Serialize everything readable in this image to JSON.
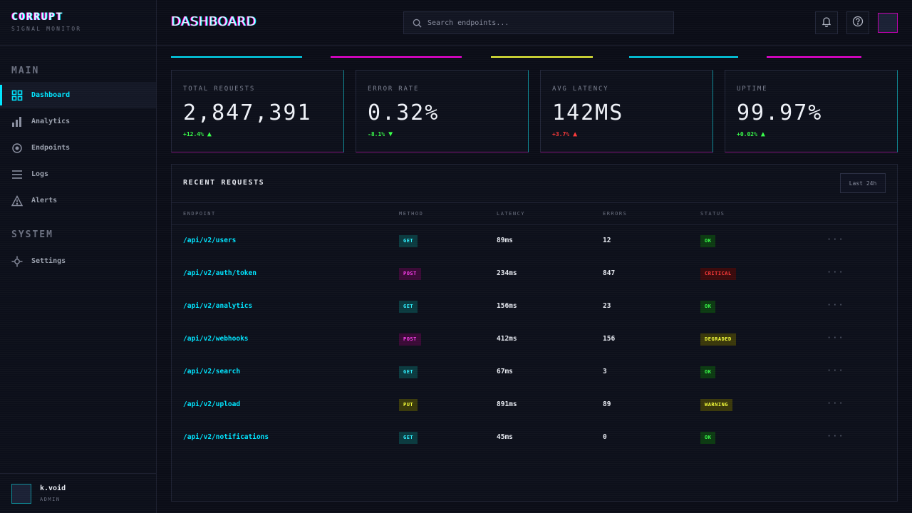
{
  "brand": {
    "name": "CORRUPT",
    "subtitle": "SIGNAL MONITOR"
  },
  "sidebar": {
    "sections": [
      {
        "title": "MAIN",
        "items": [
          {
            "label": "Dashboard",
            "icon": "grid-icon",
            "active": true
          },
          {
            "label": "Analytics",
            "icon": "bar-chart-icon",
            "active": false
          },
          {
            "label": "Endpoints",
            "icon": "target-icon",
            "active": false
          },
          {
            "label": "Logs",
            "icon": "list-icon",
            "active": false
          },
          {
            "label": "Alerts",
            "icon": "warning-icon",
            "active": false
          }
        ]
      },
      {
        "title": "SYSTEM",
        "items": [
          {
            "label": "Settings",
            "icon": "settings-icon",
            "active": false
          }
        ]
      }
    ],
    "user": {
      "name": "k.void",
      "role": "ADMIN"
    }
  },
  "header": {
    "title": "DASHBOARD",
    "search_placeholder": "Search endpoints...",
    "icons": [
      "bell-icon",
      "help-icon"
    ]
  },
  "stats": [
    {
      "label": "TOTAL REQUESTS",
      "value": "2,847,391",
      "delta": "+12.4%",
      "direction": "up",
      "delta_color": "#39ff4a",
      "arrow_color": "#39ff4a"
    },
    {
      "label": "ERROR RATE",
      "value": "0.32%",
      "delta": "-8.1%",
      "direction": "down",
      "delta_color": "#39ff4a",
      "arrow_color": "#39ff4a"
    },
    {
      "label": "AVG LATENCY",
      "value": "142MS",
      "delta": "+3.7%",
      "direction": "up",
      "delta_color": "#ff3a3a",
      "arrow_color": "#ff3a3a"
    },
    {
      "label": "UPTIME",
      "value": "99.97%",
      "delta": "+0.02%",
      "direction": "up",
      "delta_color": "#39ff4a",
      "arrow_color": "#39ff4a"
    }
  ],
  "table": {
    "title": "RECENT REQUESTS",
    "range_label": "Last 24h",
    "columns": [
      "ENDPOINT",
      "METHOD",
      "LATENCY",
      "ERRORS",
      "STATUS"
    ],
    "rows": [
      {
        "endpoint": "/api/v2/users",
        "method": "GET",
        "latency": "89ms",
        "errors": "12",
        "status": "OK"
      },
      {
        "endpoint": "/api/v2/auth/token",
        "method": "POST",
        "latency": "234ms",
        "errors": "847",
        "status": "CRITICAL"
      },
      {
        "endpoint": "/api/v2/analytics",
        "method": "GET",
        "latency": "156ms",
        "errors": "23",
        "status": "OK"
      },
      {
        "endpoint": "/api/v2/webhooks",
        "method": "POST",
        "latency": "412ms",
        "errors": "156",
        "status": "DEGRADED"
      },
      {
        "endpoint": "/api/v2/search",
        "method": "GET",
        "latency": "67ms",
        "errors": "3",
        "status": "OK"
      },
      {
        "endpoint": "/api/v2/upload",
        "method": "PUT",
        "latency": "891ms",
        "errors": "89",
        "status": "WARNING"
      },
      {
        "endpoint": "/api/v2/notifications",
        "method": "GET",
        "latency": "45ms",
        "errors": "0",
        "status": "OK"
      }
    ],
    "row_action": "···"
  },
  "colors": {
    "cyan": "#00e5ff",
    "magenta": "#ff00e5",
    "yellow": "#f6ff3a",
    "green": "#39ff4a",
    "red": "#ff3a3a"
  }
}
